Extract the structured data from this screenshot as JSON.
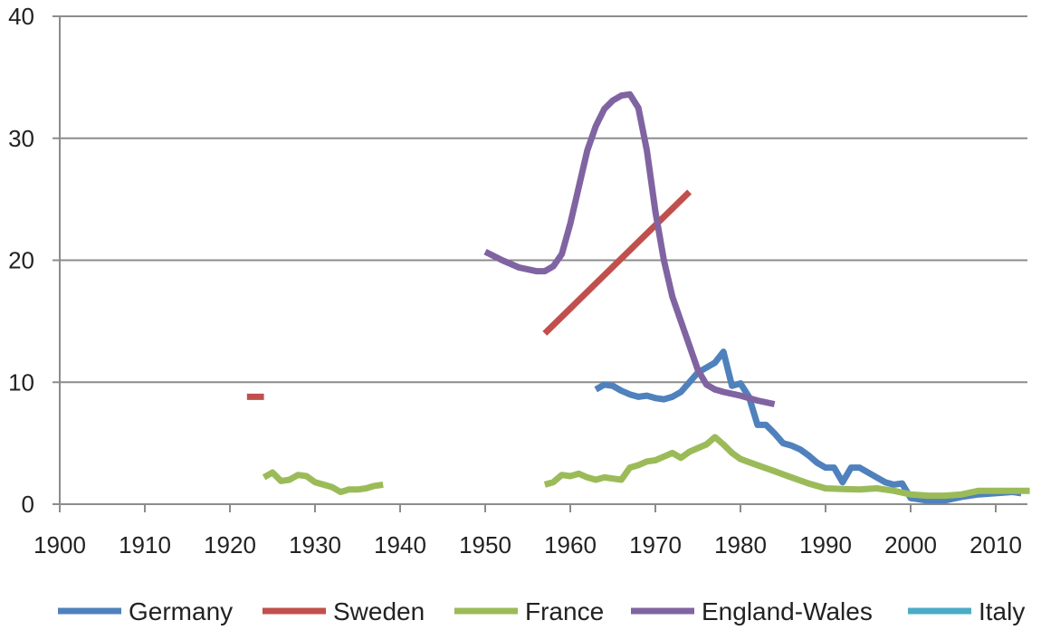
{
  "chart_data": {
    "type": "line",
    "title": "",
    "xlabel": "",
    "ylabel": "",
    "xlim": [
      1900,
      2015
    ],
    "ylim": [
      0,
      40
    ],
    "x_ticks": [
      "1900",
      "1910",
      "1920",
      "1930",
      "1940",
      "1950",
      "1960",
      "1970",
      "1980",
      "1990",
      "2000",
      "2010"
    ],
    "y_ticks": [
      "0",
      "10",
      "20",
      "30",
      "40"
    ],
    "grid": "horizontal",
    "legend_position": "bottom",
    "series": [
      {
        "name": "Germany",
        "color": "#4f81bd",
        "points": [
          [
            1963,
            9.4
          ],
          [
            1964,
            9.8
          ],
          [
            1965,
            9.7
          ],
          [
            1966,
            9.3
          ],
          [
            1967,
            9.0
          ],
          [
            1968,
            8.8
          ],
          [
            1969,
            8.9
          ],
          [
            1970,
            8.7
          ],
          [
            1971,
            8.6
          ],
          [
            1972,
            8.8
          ],
          [
            1973,
            9.2
          ],
          [
            1974,
            10.0
          ],
          [
            1975,
            10.8
          ],
          [
            1976,
            11.2
          ],
          [
            1977,
            11.6
          ],
          [
            1978,
            12.5
          ],
          [
            1979,
            9.7
          ],
          [
            1980,
            9.9
          ],
          [
            1981,
            8.8
          ],
          [
            1982,
            6.5
          ],
          [
            1983,
            6.5
          ],
          [
            1984,
            5.8
          ],
          [
            1985,
            5.0
          ],
          [
            1986,
            4.8
          ],
          [
            1987,
            4.5
          ],
          [
            1988,
            4.0
          ],
          [
            1989,
            3.4
          ],
          [
            1990,
            3.0
          ],
          [
            1991,
            3.0
          ],
          [
            1992,
            1.8
          ],
          [
            1993,
            3.0
          ],
          [
            1994,
            3.0
          ],
          [
            1995,
            2.6
          ],
          [
            1996,
            2.2
          ],
          [
            1997,
            1.8
          ],
          [
            1998,
            1.6
          ],
          [
            1999,
            1.7
          ],
          [
            2000,
            0.5
          ],
          [
            2002,
            0.3
          ],
          [
            2004,
            0.3
          ],
          [
            2006,
            0.6
          ],
          [
            2008,
            0.8
          ],
          [
            2010,
            0.9
          ],
          [
            2012,
            1.0
          ],
          [
            2013,
            0.9
          ]
        ]
      },
      {
        "name": "Sweden",
        "color": "#c0504d",
        "segments": [
          [
            [
              1922,
              8.8
            ],
            [
              1924,
              8.8
            ]
          ],
          [
            [
              1957,
              14.0
            ],
            [
              1974,
              25.6
            ]
          ]
        ]
      },
      {
        "name": "France",
        "color": "#9bbb59",
        "segments": [
          [
            [
              1924,
              2.2
            ],
            [
              1925,
              2.6
            ],
            [
              1926,
              1.9
            ],
            [
              1927,
              2.0
            ],
            [
              1928,
              2.4
            ],
            [
              1929,
              2.3
            ],
            [
              1930,
              1.8
            ],
            [
              1931,
              1.6
            ],
            [
              1932,
              1.4
            ],
            [
              1933,
              1.0
            ],
            [
              1934,
              1.2
            ],
            [
              1935,
              1.2
            ],
            [
              1936,
              1.3
            ],
            [
              1937,
              1.5
            ],
            [
              1938,
              1.6
            ]
          ],
          [
            [
              1957,
              1.6
            ],
            [
              1958,
              1.8
            ],
            [
              1959,
              2.4
            ],
            [
              1960,
              2.3
            ],
            [
              1961,
              2.5
            ],
            [
              1962,
              2.2
            ],
            [
              1963,
              2.0
            ],
            [
              1964,
              2.2
            ],
            [
              1965,
              2.1
            ],
            [
              1966,
              2.0
            ],
            [
              1967,
              3.0
            ],
            [
              1968,
              3.2
            ],
            [
              1969,
              3.5
            ],
            [
              1970,
              3.6
            ],
            [
              1971,
              3.9
            ],
            [
              1972,
              4.2
            ],
            [
              1973,
              3.8
            ],
            [
              1974,
              4.3
            ],
            [
              1975,
              4.6
            ],
            [
              1976,
              4.9
            ],
            [
              1977,
              5.5
            ],
            [
              1978,
              4.9
            ],
            [
              1979,
              4.2
            ],
            [
              1980,
              3.7
            ],
            [
              1982,
              3.2
            ],
            [
              1984,
              2.7
            ],
            [
              1986,
              2.2
            ],
            [
              1988,
              1.7
            ],
            [
              1990,
              1.3
            ],
            [
              1992,
              1.25
            ],
            [
              1994,
              1.2
            ],
            [
              1996,
              1.3
            ],
            [
              1998,
              1.1
            ],
            [
              2000,
              0.8
            ],
            [
              2002,
              0.7
            ],
            [
              2004,
              0.7
            ],
            [
              2006,
              0.8
            ],
            [
              2008,
              1.1
            ],
            [
              2010,
              1.1
            ],
            [
              2012,
              1.1
            ],
            [
              2014,
              1.1
            ]
          ]
        ]
      },
      {
        "name": "England-Wales",
        "color": "#8064a2",
        "points": [
          [
            1950,
            20.7
          ],
          [
            1952,
            20.0
          ],
          [
            1954,
            19.4
          ],
          [
            1956,
            19.1
          ],
          [
            1957,
            19.1
          ],
          [
            1958,
            19.5
          ],
          [
            1959,
            20.5
          ],
          [
            1960,
            23.0
          ],
          [
            1961,
            26.0
          ],
          [
            1962,
            29.0
          ],
          [
            1963,
            31.0
          ],
          [
            1964,
            32.4
          ],
          [
            1965,
            33.1
          ],
          [
            1966,
            33.5
          ],
          [
            1967,
            33.6
          ],
          [
            1968,
            32.5
          ],
          [
            1969,
            29.0
          ],
          [
            1970,
            24.0
          ],
          [
            1971,
            20.0
          ],
          [
            1972,
            17.0
          ],
          [
            1973,
            15.0
          ],
          [
            1974,
            13.0
          ],
          [
            1975,
            11.0
          ],
          [
            1976,
            9.8
          ],
          [
            1977,
            9.4
          ],
          [
            1978,
            9.2
          ],
          [
            1980,
            8.9
          ],
          [
            1982,
            8.5
          ],
          [
            1984,
            8.2
          ]
        ]
      },
      {
        "name": "Italy",
        "color": "#4bacc6",
        "points": []
      }
    ]
  }
}
